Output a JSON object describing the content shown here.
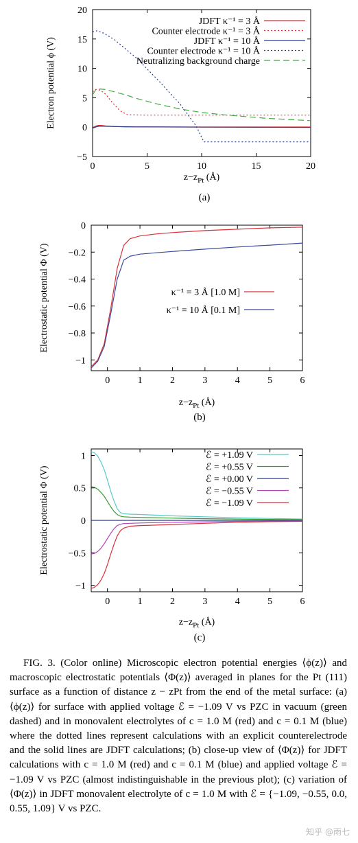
{
  "figure": {
    "panels": [
      {
        "id": "a",
        "sublabel": "(a)",
        "chart_data": {
          "type": "line",
          "xlabel": "z−z",
          "xlabel_sub": "Pt",
          "xlabel_unit": " (Å)",
          "ylabel": "Electron potential  ϕ (V)",
          "xlim": [
            0,
            20
          ],
          "ylim": [
            -5,
            20
          ],
          "xticks": [
            0,
            5,
            10,
            15,
            20
          ],
          "yticks": [
            -5,
            0,
            5,
            10,
            15,
            20
          ],
          "legend_position": "top-right",
          "series": [
            {
              "name": "JDFT κ⁻¹ = 3 Å",
              "color": "#e8262a",
              "style": "solid",
              "x": [
                0,
                0.2,
                0.5,
                0.8,
                1.2,
                2,
                3,
                5,
                10,
                15,
                20
              ],
              "y": [
                -0.2,
                0.1,
                0.3,
                0.3,
                0.2,
                0.1,
                0.05,
                0.03,
                0.02,
                0.02,
                0.02
              ]
            },
            {
              "name": "Counter electrode  κ⁻¹ = 3 Å",
              "color": "#e8262a",
              "style": "dotted",
              "x": [
                0,
                0.3,
                0.7,
                1.2,
                1.8,
                2.5,
                3.2,
                5,
                10,
                15,
                20
              ],
              "y": [
                6.0,
                6.4,
                6.3,
                5.6,
                4.2,
                2.8,
                2.1,
                2.05,
                2.05,
                2.05,
                2.05
              ]
            },
            {
              "name": "JDFT  κ⁻¹ = 10 Å",
              "color": "#2b3f8f",
              "style": "solid",
              "x": [
                0,
                0.3,
                0.6,
                1,
                2,
                4,
                6,
                8,
                10,
                15,
                20
              ],
              "y": [
                -0.2,
                0.05,
                0.15,
                0.15,
                0.1,
                0.05,
                0.03,
                0.02,
                0.0,
                -0.02,
                -0.05
              ]
            },
            {
              "name": "Counter electrode  κ⁻¹ = 10 Å",
              "color": "#2b3f8f",
              "style": "dotted",
              "x": [
                0,
                0.4,
                1,
                2,
                4,
                6,
                8,
                9.5,
                10.2,
                12,
                15,
                20
              ],
              "y": [
                16.2,
                16.4,
                16.0,
                14.9,
                11.8,
                8.0,
                4.0,
                0.2,
                -2.5,
                -2.5,
                -2.5,
                -2.5
              ]
            },
            {
              "name": "Neutralizing background charge",
              "color": "#44a844",
              "style": "dashed",
              "x": [
                0,
                0.3,
                0.7,
                1.2,
                2,
                3,
                4,
                6,
                8,
                10,
                12,
                14,
                16,
                18,
                20
              ],
              "y": [
                5.5,
                6.4,
                6.5,
                6.4,
                6.0,
                5.5,
                4.9,
                3.9,
                3.1,
                2.5,
                2.1,
                1.8,
                1.5,
                1.3,
                1.1
              ]
            }
          ]
        }
      },
      {
        "id": "b",
        "sublabel": "(b)",
        "chart_data": {
          "type": "line",
          "xlabel": "z−z",
          "xlabel_sub": "Pt",
          "xlabel_unit": " (Å)",
          "ylabel": "Electrostatic potential  Φ (V)",
          "xlim": [
            -0.5,
            6
          ],
          "ylim": [
            -1.08,
            0
          ],
          "xticks": [
            0,
            1,
            2,
            3,
            4,
            5,
            6
          ],
          "yticks": [
            -1,
            -0.8,
            -0.6,
            -0.4,
            -0.2,
            0
          ],
          "legend_position": "center-right",
          "series": [
            {
              "name": "κ⁻¹ =   3 Å [1.0 M]",
              "color": "#d6323a",
              "x": [
                -0.5,
                -0.3,
                -0.1,
                0.1,
                0.3,
                0.5,
                0.7,
                1.0,
                1.5,
                2,
                3,
                4,
                5,
                6
              ],
              "y": [
                -1.05,
                -1.0,
                -0.88,
                -0.62,
                -0.32,
                -0.15,
                -0.1,
                -0.08,
                -0.065,
                -0.055,
                -0.04,
                -0.03,
                -0.02,
                -0.015
              ]
            },
            {
              "name": "κ⁻¹ = 10 Å [0.1 M]",
              "color": "#3a4b9a",
              "x": [
                -0.5,
                -0.3,
                -0.1,
                0.1,
                0.3,
                0.5,
                0.7,
                1.0,
                1.5,
                2,
                3,
                4,
                5,
                6
              ],
              "y": [
                -1.06,
                -1.01,
                -0.9,
                -0.66,
                -0.4,
                -0.26,
                -0.23,
                -0.215,
                -0.205,
                -0.195,
                -0.178,
                -0.162,
                -0.148,
                -0.133
              ]
            }
          ]
        }
      },
      {
        "id": "c",
        "sublabel": "(c)",
        "chart_data": {
          "type": "line",
          "xlabel": "z−z",
          "xlabel_sub": "Pt",
          "xlabel_unit": " (Å)",
          "ylabel": "Electrostatic potential Φ (V)",
          "xlim": [
            -0.5,
            6
          ],
          "ylim": [
            -1.1,
            1.1
          ],
          "xticks": [
            0,
            1,
            2,
            3,
            4,
            5,
            6
          ],
          "yticks": [
            -1,
            -0.5,
            0,
            0.5,
            1
          ],
          "legend_position": "top-right",
          "series": [
            {
              "name": "ℰ = +1.09 V",
              "color": "#5bc8c8",
              "x": [
                -0.5,
                -0.4,
                -0.3,
                -0.2,
                -0.1,
                0,
                0.1,
                0.2,
                0.3,
                0.4,
                0.5,
                0.7,
                1,
                2,
                3,
                4,
                5,
                6
              ],
              "y": [
                1.06,
                1.04,
                0.99,
                0.9,
                0.78,
                0.62,
                0.45,
                0.3,
                0.18,
                0.12,
                0.1,
                0.095,
                0.09,
                0.07,
                0.055,
                0.04,
                0.03,
                0.02
              ]
            },
            {
              "name": "ℰ = +0.55 V",
              "color": "#3a9a30",
              "x": [
                -0.5,
                -0.4,
                -0.3,
                -0.2,
                -0.1,
                0,
                0.1,
                0.2,
                0.3,
                0.4,
                0.5,
                0.7,
                1,
                2,
                3,
                4,
                5,
                6
              ],
              "y": [
                0.52,
                0.51,
                0.48,
                0.43,
                0.37,
                0.29,
                0.21,
                0.14,
                0.09,
                0.065,
                0.055,
                0.05,
                0.045,
                0.035,
                0.025,
                0.02,
                0.015,
                0.01
              ]
            },
            {
              "name": "ℰ = +0.00 V",
              "color": "#2b3f8f",
              "x": [
                -0.5,
                6
              ],
              "y": [
                0.0,
                0.0
              ]
            },
            {
              "name": "ℰ = −0.55 V",
              "color": "#b247b8",
              "x": [
                -0.5,
                -0.4,
                -0.3,
                -0.2,
                -0.1,
                0,
                0.1,
                0.2,
                0.3,
                0.4,
                0.5,
                0.7,
                1,
                2,
                3,
                4,
                5,
                6
              ],
              "y": [
                -0.52,
                -0.51,
                -0.48,
                -0.43,
                -0.36,
                -0.28,
                -0.2,
                -0.13,
                -0.08,
                -0.06,
                -0.05,
                -0.045,
                -0.04,
                -0.03,
                -0.022,
                -0.016,
                -0.012,
                -0.008
              ]
            },
            {
              "name": "ℰ = −1.09 V",
              "color": "#d6323a",
              "x": [
                -0.5,
                -0.4,
                -0.3,
                -0.2,
                -0.1,
                0,
                0.1,
                0.2,
                0.3,
                0.4,
                0.5,
                0.7,
                1,
                2,
                3,
                4,
                5,
                6
              ],
              "y": [
                -1.05,
                -1.03,
                -0.99,
                -0.92,
                -0.82,
                -0.68,
                -0.52,
                -0.37,
                -0.24,
                -0.16,
                -0.12,
                -0.09,
                -0.08,
                -0.065,
                -0.045,
                -0.03,
                -0.02,
                -0.015
              ]
            }
          ]
        }
      }
    ]
  },
  "caption": {
    "paragraph": "FIG. 3. (Color online) Microscopic electron potential energies ⟨ϕ(z)⟩ and macroscopic electrostatic potentials ⟨Φ(z)⟩ averaged in planes for the Pt (111) surface as a function of distance z − zPt from the end of the metal surface: (a) ⟨ϕ(z)⟩ for surface with applied voltage ℰ = −1.09 V vs PZC in vacuum (green dashed) and in monovalent electrolytes of c = 1.0 M (red) and c = 0.1 M (blue) where the dotted lines represent calculations with an explicit counterelectrode and the solid lines are JDFT calculations; (b) close-up view of ⟨Φ(z)⟩ for JDFT calculations with c = 1.0 M (red) and c = 0.1 M (blue) and applied voltage ℰ = −1.09 V vs PZC (almost indistinguishable in the previous plot); (c) variation of ⟨Φ(z)⟩ in JDFT monovalent electrolyte of c = 1.0 M with ℰ = {−1.09, −0.55, 0.0, 0.55, 1.09} V vs PZC."
  },
  "watermark": "知乎 @雨七"
}
